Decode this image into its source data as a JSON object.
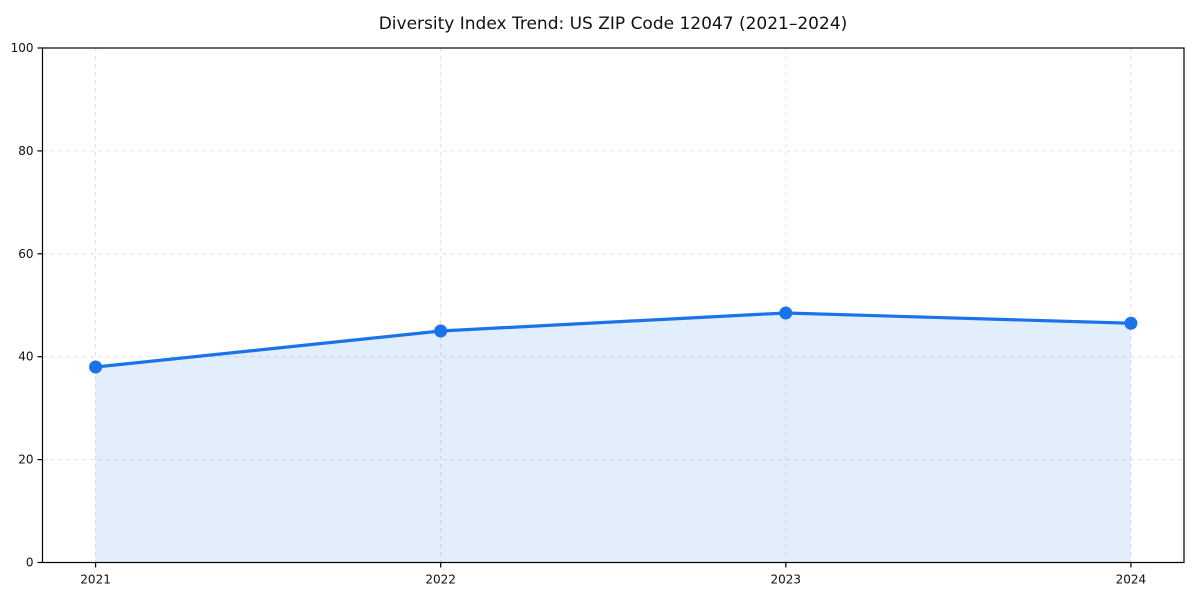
{
  "title": "Diversity Index Trend: US ZIP Code 12047 (2021–2024)",
  "colors": {
    "line": "#1a73e8",
    "fill": "#1a73e8",
    "fill_opacity": 0.12,
    "grid": "#e0e0e0",
    "axis": "#000000",
    "text": "#111111",
    "background": "#ffffff"
  },
  "chart_data": {
    "type": "area",
    "title": "Diversity Index Trend: US ZIP Code 12047 (2021–2024)",
    "series_name": "Diversity Index",
    "x": [
      2021,
      2022,
      2023,
      2024
    ],
    "xtick_labels": [
      "2021",
      "2022",
      "2023",
      "2024"
    ],
    "values": [
      38,
      45,
      48.5,
      46.5
    ],
    "xlabel": "",
    "ylabel": "",
    "ylim": [
      0,
      100
    ],
    "yticks": [
      0,
      20,
      40,
      60,
      80,
      100
    ],
    "grid": "dashed, both axes",
    "legend": "none",
    "markers": "filled circles on each point",
    "fill_to_zero": true
  }
}
